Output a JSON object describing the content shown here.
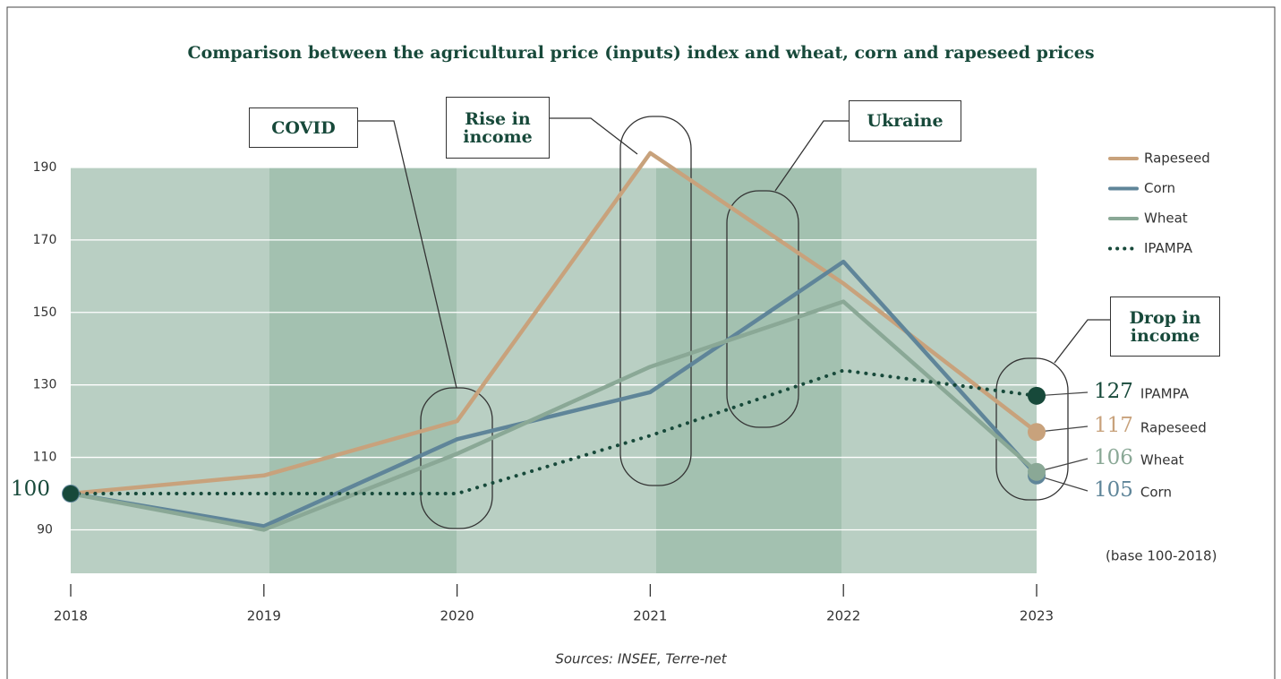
{
  "chart_data": {
    "type": "line",
    "title": "Comparison between the agricultural price (inputs) index and wheat, corn and rapeseed prices",
    "x": [
      2018,
      2019,
      2020,
      2021,
      2022,
      2023
    ],
    "xlim": [
      2018,
      2023
    ],
    "xticks": [
      2018,
      2019,
      2020,
      2021,
      2022,
      2023
    ],
    "ylim": [
      78,
      190
    ],
    "yticks": [
      90,
      110,
      130,
      150,
      170,
      190
    ],
    "grid": true,
    "series": [
      {
        "name": "Rapeseed",
        "color": "#c8a27c",
        "values": [
          100,
          105,
          120,
          194,
          158,
          117
        ]
      },
      {
        "name": "Corn",
        "color": "#5f8599",
        "values": [
          100,
          91,
          115,
          128,
          164,
          105
        ]
      },
      {
        "name": "Wheat",
        "color": "#8aa896",
        "values": [
          100,
          90,
          111,
          135,
          153,
          106
        ]
      },
      {
        "name": "IPAMPA",
        "color": "#17493a",
        "line_style": "dotted",
        "values": [
          100,
          100,
          100,
          116,
          134,
          127
        ]
      }
    ],
    "annotations": [
      "COVID",
      "Rise in income",
      "Ukraine",
      "Drop in income"
    ],
    "note": "(base 100-2018)",
    "source": "Sources: INSEE, Terre-net"
  }
}
